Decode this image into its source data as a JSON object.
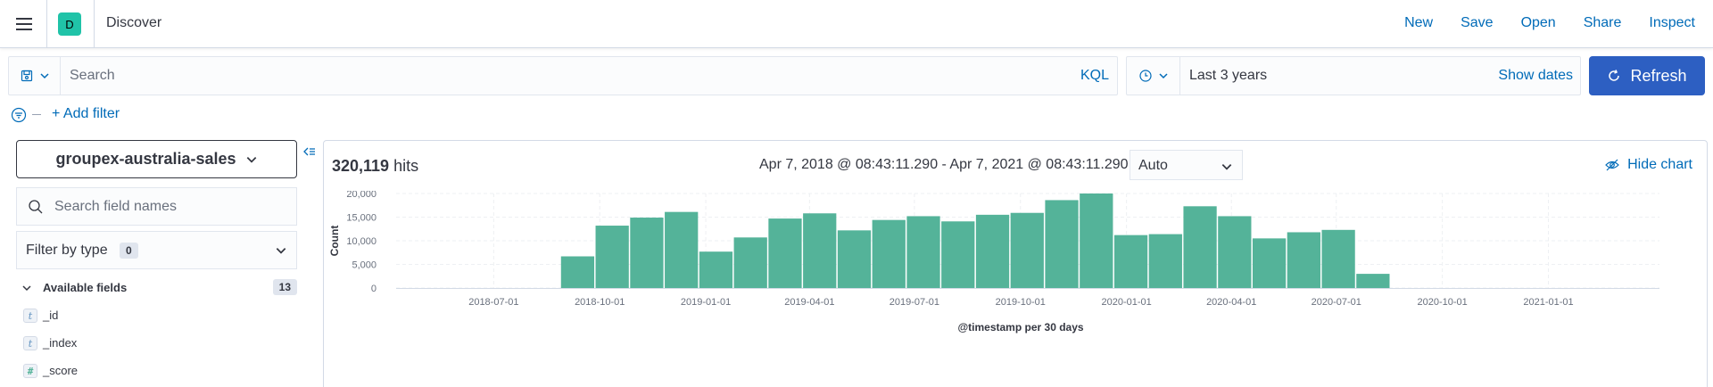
{
  "header": {
    "space_initial": "D",
    "app_title": "Discover",
    "nav": [
      "New",
      "Save",
      "Open",
      "Share",
      "Inspect"
    ]
  },
  "querybar": {
    "search_placeholder": "Search",
    "language": "KQL",
    "date_range": "Last 3 years",
    "show_dates": "Show dates",
    "refresh": "Refresh"
  },
  "filters": {
    "add_filter": "+ Add filter"
  },
  "sidebar": {
    "index_pattern": "groupex-australia-sales",
    "field_search_placeholder": "Search field names",
    "filter_by_type": "Filter by type",
    "filter_count": "0",
    "available_fields_label": "Available fields",
    "available_fields_count": "13",
    "fields": [
      {
        "type": "t",
        "name": "_id"
      },
      {
        "type": "t",
        "name": "_index"
      },
      {
        "type": "#",
        "name": "_score"
      }
    ]
  },
  "main": {
    "hits_count": "320,119",
    "hits_label": "hits",
    "time_range": "Apr 7, 2018 @ 08:43:11.290 - Apr 7, 2021 @ 08:43:11.290",
    "interval": "Auto",
    "hide_chart": "Hide chart"
  },
  "colors": {
    "bar": "#54b399",
    "link": "#006bb8",
    "primary": "#2d5fc2"
  },
  "chart_data": {
    "type": "bar",
    "ylabel": "Count",
    "xlabel": "@timestamp per 30 days",
    "ylim": [
      0,
      20000
    ],
    "yticks": [
      "0",
      "5,000",
      "10,000",
      "15,000",
      "20,000"
    ],
    "xticks": [
      "2018-07-01",
      "2018-10-01",
      "2019-01-01",
      "2019-04-01",
      "2019-07-01",
      "2019-10-01",
      "2020-01-01",
      "2020-04-01",
      "2020-07-01",
      "2020-10-01",
      "2021-01-01"
    ],
    "bars": [
      {
        "start": "2018-08-28",
        "value": 6700
      },
      {
        "start": "2018-09-27",
        "value": 13200
      },
      {
        "start": "2018-10-27",
        "value": 14900
      },
      {
        "start": "2018-11-26",
        "value": 16100
      },
      {
        "start": "2018-12-26",
        "value": 7700
      },
      {
        "start": "2019-01-25",
        "value": 10700
      },
      {
        "start": "2019-02-24",
        "value": 14700
      },
      {
        "start": "2019-03-26",
        "value": 15800
      },
      {
        "start": "2019-04-25",
        "value": 12200
      },
      {
        "start": "2019-05-25",
        "value": 14400
      },
      {
        "start": "2019-06-24",
        "value": 15200
      },
      {
        "start": "2019-07-24",
        "value": 14100
      },
      {
        "start": "2019-08-23",
        "value": 15500
      },
      {
        "start": "2019-09-22",
        "value": 15900
      },
      {
        "start": "2019-10-22",
        "value": 18600
      },
      {
        "start": "2019-11-21",
        "value": 20000
      },
      {
        "start": "2019-12-21",
        "value": 11200
      },
      {
        "start": "2020-01-20",
        "value": 11400
      },
      {
        "start": "2020-02-19",
        "value": 17300
      },
      {
        "start": "2020-03-20",
        "value": 15200
      },
      {
        "start": "2020-04-19",
        "value": 10500
      },
      {
        "start": "2020-05-19",
        "value": 11800
      },
      {
        "start": "2020-06-18",
        "value": 12300
      },
      {
        "start": "2020-07-18",
        "value": 3000
      }
    ]
  }
}
